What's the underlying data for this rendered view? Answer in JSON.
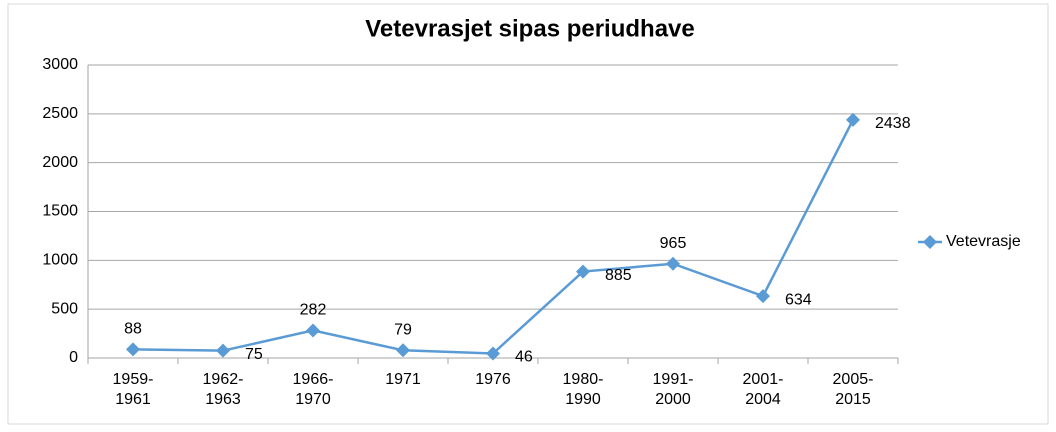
{
  "chart_data": {
    "type": "line",
    "title": "Vetevrasjet sipas periudhave",
    "categories": [
      "1959-1961",
      "1962-1963",
      "1966-1970",
      "1971",
      "1976",
      "1980-1990",
      "1991-2000",
      "2001-2004",
      "2005-2015"
    ],
    "series": [
      {
        "name": "Vetevrasje",
        "color": "#5b9bd5",
        "values": [
          88,
          75,
          282,
          79,
          46,
          885,
          965,
          634,
          2438
        ]
      }
    ],
    "ylim": [
      0,
      3000
    ],
    "yticks": [
      0,
      500,
      1000,
      1500,
      2000,
      2500,
      3000
    ],
    "grid": true,
    "legend": "right"
  }
}
